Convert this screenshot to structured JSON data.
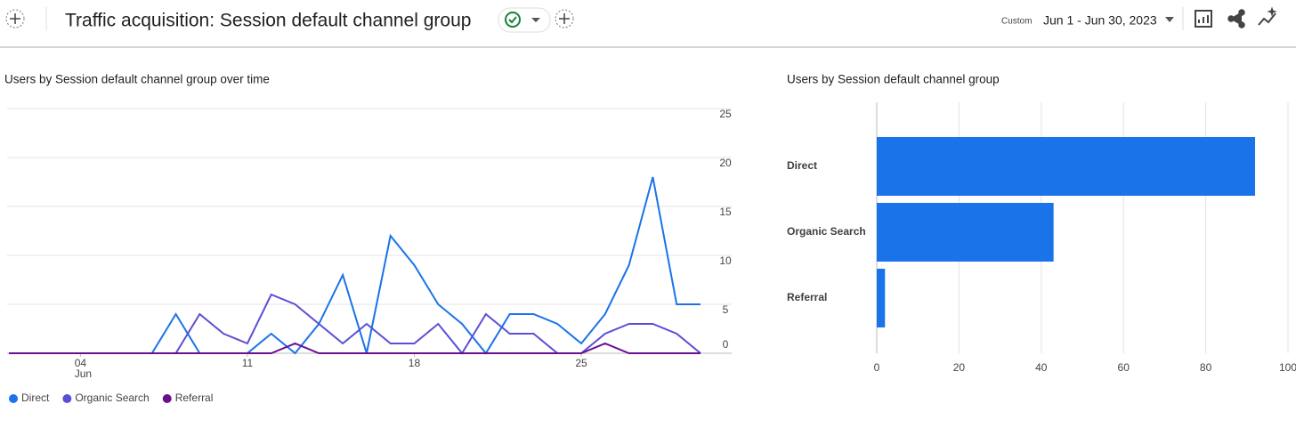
{
  "header": {
    "title": "Traffic acquisition: Session default channel group",
    "date_range_label": "Custom",
    "date_range": "Jun 1 - Jun 30, 2023"
  },
  "chart_data": [
    {
      "type": "line",
      "title": "Users by Session default channel group over time",
      "x": [
        1,
        2,
        3,
        4,
        5,
        6,
        7,
        8,
        9,
        10,
        11,
        12,
        13,
        14,
        15,
        16,
        17,
        18,
        19,
        20,
        21,
        22,
        23,
        24,
        25,
        26,
        27,
        28,
        29,
        30
      ],
      "xlim": [
        1,
        30
      ],
      "xticks": [
        {
          "value": 4,
          "label": "04"
        },
        11,
        18,
        25
      ],
      "x_month_label": "Jun",
      "ylim": [
        0,
        25
      ],
      "yticks": [
        0,
        5,
        10,
        15,
        20,
        25
      ],
      "grid": true,
      "legend": "bottom",
      "series": [
        {
          "name": "Direct",
          "color": "#1a73e8",
          "values": [
            0,
            0,
            0,
            0,
            0,
            0,
            0,
            4,
            0,
            0,
            0,
            2,
            0,
            3,
            8,
            0,
            12,
            9,
            5,
            3,
            0,
            4,
            4,
            3,
            1,
            4,
            9,
            18,
            5,
            5
          ]
        },
        {
          "name": "Organic Search",
          "color": "#5a4fd6",
          "values": [
            0,
            0,
            0,
            0,
            0,
            0,
            0,
            0,
            4,
            2,
            1,
            6,
            5,
            3,
            1,
            3,
            1,
            1,
            3,
            0,
            4,
            2,
            2,
            0,
            0,
            2,
            3,
            3,
            2,
            0
          ]
        },
        {
          "name": "Referral",
          "color": "#6a0f8e",
          "values": [
            0,
            0,
            0,
            0,
            0,
            0,
            0,
            0,
            0,
            0,
            0,
            0,
            1,
            0,
            0,
            0,
            0,
            0,
            0,
            0,
            0,
            0,
            0,
            0,
            0,
            1,
            0,
            0,
            0,
            0
          ]
        }
      ]
    },
    {
      "type": "hbar",
      "title": "Users by Session default channel group",
      "categories": [
        "Direct",
        "Organic Search",
        "Referral"
      ],
      "values": [
        92,
        43,
        2
      ],
      "color": "#1a73e8",
      "xlim": [
        0,
        100
      ],
      "xticks": [
        0,
        20,
        40,
        60,
        80,
        100
      ],
      "grid": true
    }
  ]
}
